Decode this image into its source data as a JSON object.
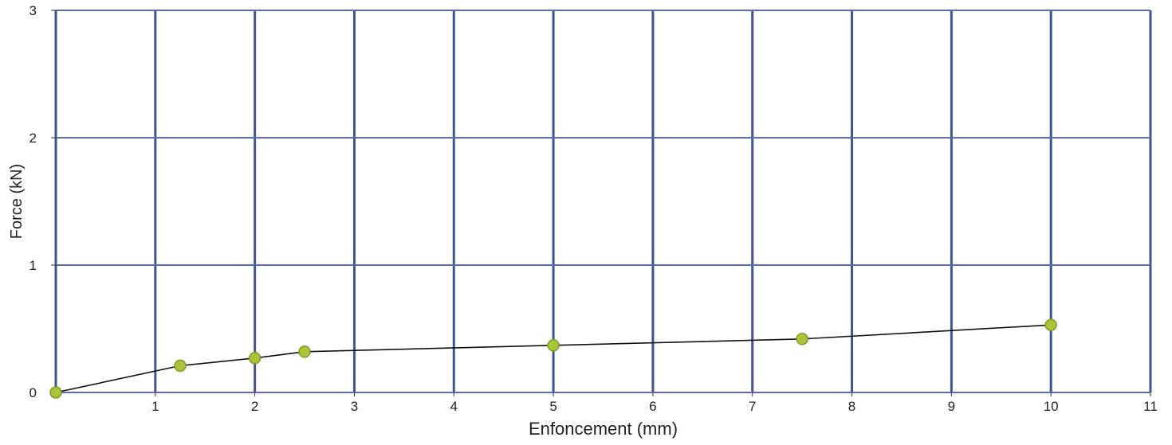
{
  "chart_data": {
    "type": "line",
    "title": "",
    "xlabel": "Enfoncement (mm)",
    "ylabel": "Force (kN)",
    "xlim": [
      0,
      11
    ],
    "ylim": [
      0,
      3
    ],
    "x_ticks": [
      0,
      1,
      2,
      3,
      4,
      5,
      6,
      7,
      8,
      9,
      10,
      11
    ],
    "x_tick_labels": [
      "",
      "1",
      "2",
      "3",
      "4",
      "5",
      "6",
      "7",
      "8",
      "9",
      "10",
      "11"
    ],
    "y_ticks": [
      0,
      1,
      2,
      3
    ],
    "y_tick_labels": [
      "0",
      "1",
      "2",
      "3"
    ],
    "grid": true,
    "legend": "none",
    "colors": {
      "grid_vertical": "#3f5493",
      "grid_horizontal": "#5a6fa8",
      "line": "#111111",
      "marker_fill": "#a8c43a",
      "marker_stroke": "#7f9a22"
    },
    "series": [
      {
        "points": [
          {
            "x": 0,
            "y": 0.0
          },
          {
            "x": 1.25,
            "y": 0.21
          },
          {
            "x": 2.0,
            "y": 0.27
          },
          {
            "x": 2.5,
            "y": 0.32
          },
          {
            "x": 5.0,
            "y": 0.37
          },
          {
            "x": 7.5,
            "y": 0.42
          },
          {
            "x": 10.0,
            "y": 0.53
          }
        ]
      }
    ]
  }
}
